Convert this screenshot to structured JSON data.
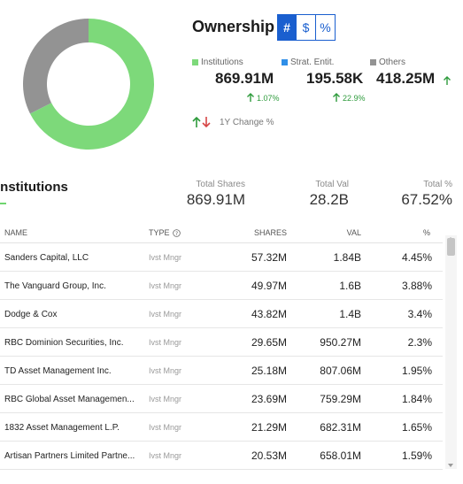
{
  "ownership": {
    "title": "Ownership",
    "toggles": [
      {
        "label": "#",
        "active": true
      },
      {
        "label": "$",
        "active": false
      },
      {
        "label": "%",
        "active": false
      }
    ],
    "categories": [
      {
        "label": "Institutions",
        "value": "869.91M",
        "change": "1.07%",
        "color": "#7dd97a",
        "share": 0.6752
      },
      {
        "label": "Strat. Entit.",
        "value": "195.58K",
        "change": "22.9%",
        "color": "#2f8fe8",
        "share": 0.0002
      },
      {
        "label": "Others",
        "value": "418.25M",
        "change": "",
        "color": "#939393",
        "share": 0.3246
      }
    ],
    "change_legend": "1Y Change %"
  },
  "institutions": {
    "title": "Institutions",
    "summary": [
      {
        "label": "Total Shares",
        "value": "869.91M"
      },
      {
        "label": "Total Val",
        "value": "28.2B"
      },
      {
        "label": "Total %",
        "value": "67.52%"
      }
    ],
    "columns": {
      "name": "NAME",
      "type": "TYPE",
      "shares": "SHARES",
      "val": "VAL",
      "pct": "%"
    },
    "rows": [
      {
        "name": "Sanders Capital, LLC",
        "type": "Ivst Mngr",
        "shares": "57.32M",
        "val": "1.84B",
        "pct": "4.45%"
      },
      {
        "name": "The Vanguard Group, Inc.",
        "type": "Ivst Mngr",
        "shares": "49.97M",
        "val": "1.6B",
        "pct": "3.88%"
      },
      {
        "name": "Dodge & Cox",
        "type": "Ivst Mngr",
        "shares": "43.82M",
        "val": "1.4B",
        "pct": "3.4%"
      },
      {
        "name": "RBC Dominion Securities, Inc.",
        "type": "Ivst Mngr",
        "shares": "29.65M",
        "val": "950.27M",
        "pct": "2.3%"
      },
      {
        "name": "TD Asset Management Inc.",
        "type": "Ivst Mngr",
        "shares": "25.18M",
        "val": "807.06M",
        "pct": "1.95%"
      },
      {
        "name": "RBC Global Asset Managemen...",
        "type": "Ivst Mngr",
        "shares": "23.69M",
        "val": "759.29M",
        "pct": "1.84%"
      },
      {
        "name": "1832 Asset Management L.P.",
        "type": "Ivst Mngr",
        "shares": "21.29M",
        "val": "682.31M",
        "pct": "1.65%"
      },
      {
        "name": "Artisan Partners Limited Partne...",
        "type": "Ivst Mngr",
        "shares": "20.53M",
        "val": "658.01M",
        "pct": "1.59%"
      }
    ]
  }
}
